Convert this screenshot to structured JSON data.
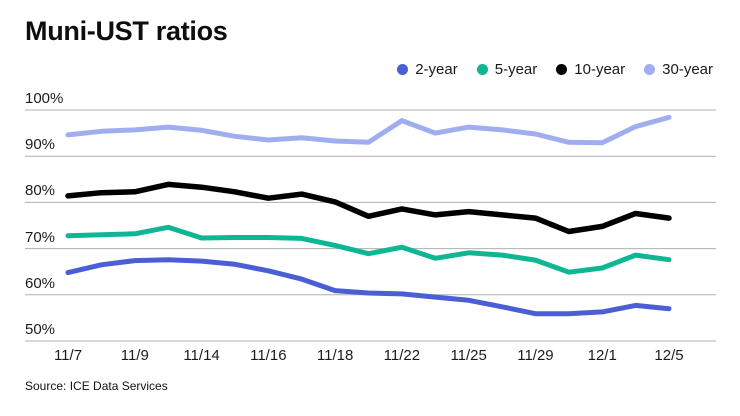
{
  "header": {
    "title": "Muni-UST ratios"
  },
  "source": "Source: ICE Data Services",
  "colors": {
    "background": "#ffffff",
    "gridline": "#b0b0b0",
    "text": "#1c1c1c",
    "series_2_year": "#4a5fd6",
    "series_5_year": "#0fb694",
    "series_10_year": "#000000",
    "series_30_year": "#a0aeef"
  },
  "chart_data": {
    "type": "line",
    "title": "Muni-UST ratios",
    "xlabel": "",
    "ylabel": "",
    "ylim": [
      50,
      100
    ],
    "y_ticks": [
      100,
      90,
      80,
      70,
      60,
      50
    ],
    "y_tick_suffix": "%",
    "grid": "horizontal",
    "legend_position": "top-right",
    "n_points": 19,
    "x_tick_labels": [
      "11/7",
      "11/9",
      "11/14",
      "11/16",
      "11/18",
      "11/22",
      "11/25",
      "11/29",
      "12/1",
      "12/5"
    ],
    "x_tick_indices": [
      0,
      2,
      4,
      6,
      8,
      10,
      12,
      14,
      16,
      18
    ],
    "series": [
      {
        "name": "2-year",
        "color": "#4a5fd6",
        "values": [
          64.8,
          66.5,
          67.4,
          67.6,
          67.3,
          66.6,
          65.2,
          63.4,
          60.9,
          60.4,
          60.2,
          59.5,
          58.8,
          57.4,
          55.9,
          55.9,
          56.3,
          57.7,
          57.0
        ]
      },
      {
        "name": "5-year",
        "color": "#0fb694",
        "values": [
          72.8,
          73.0,
          73.2,
          74.6,
          72.3,
          72.4,
          72.4,
          72.2,
          70.7,
          68.9,
          70.3,
          67.9,
          69.1,
          68.6,
          67.5,
          64.9,
          65.8,
          68.6,
          67.6
        ]
      },
      {
        "name": "10-year",
        "color": "#000000",
        "values": [
          81.4,
          82.1,
          82.3,
          83.9,
          83.3,
          82.3,
          80.9,
          81.8,
          80.1,
          77.0,
          78.6,
          77.3,
          78.0,
          77.3,
          76.6,
          73.7,
          74.8,
          77.6,
          76.6
        ]
      },
      {
        "name": "30-year",
        "color": "#a0aeef",
        "values": [
          94.6,
          95.4,
          95.7,
          96.3,
          95.6,
          94.3,
          93.5,
          94.0,
          93.3,
          93.0,
          97.7,
          95.0,
          96.3,
          95.7,
          94.8,
          93.0,
          92.9,
          96.4,
          98.4
        ]
      }
    ]
  }
}
